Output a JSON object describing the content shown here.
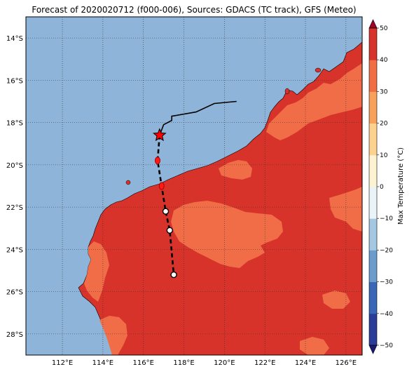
{
  "title": "Forecast of 2020020712 (f000-006), Sources: GDACS (TC track), GFS (Meteo)",
  "lat_labels": [
    "14°S",
    "16°S",
    "18°S",
    "20°S",
    "22°S",
    "24°S",
    "26°S",
    "28°S"
  ],
  "lon_labels": [
    "112°E",
    "114°E",
    "116°E",
    "118°E",
    "120°E",
    "122°E",
    "124°E",
    "126°E"
  ],
  "map_extent": {
    "lon_min": 110.2,
    "lon_max": 126.8,
    "lat_min": -29.0,
    "lat_max": -13.0
  },
  "colorbar": {
    "label": "Max Temperature (°C)",
    "ticks": [
      "50",
      "40",
      "30",
      "20",
      "10",
      "0",
      "−10",
      "−20",
      "−30",
      "−40",
      "−50"
    ],
    "range": [
      -50,
      50
    ],
    "colors": [
      "#1a1a74",
      "#2a3c98",
      "#3a66b6",
      "#6c9ccc",
      "#a4c8e2",
      "#eaf3f8",
      "#fdf3d2",
      "#fdd18e",
      "#f7a15c",
      "#f16d44",
      "#d7332a",
      "#9e0328"
    ]
  },
  "map_colors": {
    "ocean": "#8fb4d9",
    "land_hot": "#d7332a",
    "land_warm": "#f06d47"
  },
  "storm_track": {
    "current_position": {
      "lon": 116.8,
      "lat": -18.6,
      "symbol": "red star"
    },
    "past_track": [
      [
        116.8,
        -18.6
      ],
      [
        117.0,
        -18.1
      ],
      [
        117.4,
        -17.9
      ],
      [
        117.4,
        -17.7
      ],
      [
        118.6,
        -17.5
      ],
      [
        119.5,
        -17.1
      ],
      [
        120.6,
        -17.0
      ]
    ],
    "forecast_track": [
      [
        116.8,
        -18.6
      ],
      [
        116.7,
        -19.8
      ],
      [
        116.9,
        -21.0
      ],
      [
        117.1,
        -22.2
      ],
      [
        117.3,
        -23.1
      ],
      [
        117.5,
        -25.2
      ]
    ],
    "forecast_points": [
      {
        "lon": 116.7,
        "lat": -19.8,
        "color": "red"
      },
      {
        "lon": 116.9,
        "lat": -21.0,
        "color": "red"
      },
      {
        "lon": 117.1,
        "lat": -22.2,
        "color": "white"
      },
      {
        "lon": 117.3,
        "lat": -23.1,
        "color": "white"
      },
      {
        "lon": 117.5,
        "lat": -25.2,
        "color": "white"
      }
    ]
  }
}
